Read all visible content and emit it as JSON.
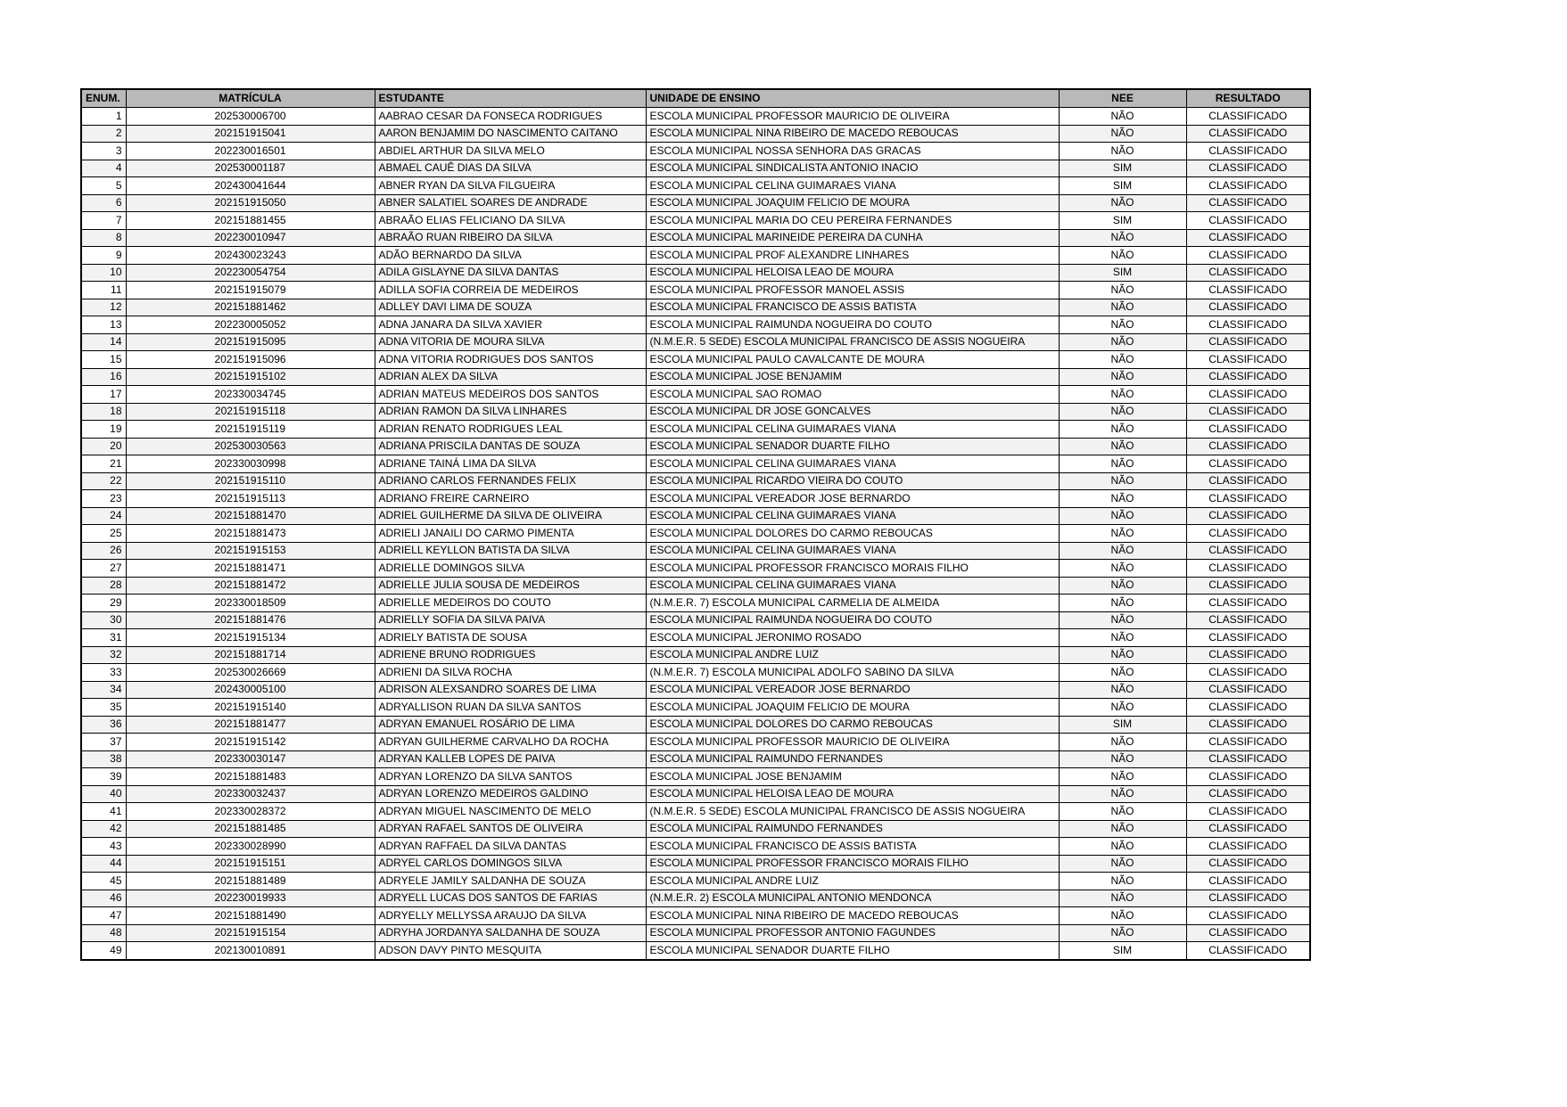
{
  "colors": {
    "header_bg": "#b9b9b9",
    "row_alt_bg": "#f2f2f2",
    "border": "#000000",
    "text": "#000000",
    "page_bg": "#ffffff"
  },
  "table": {
    "columns": [
      "ENUM.",
      "MATRÍCULA",
      "ESTUDANTE",
      "UNIDADE DE ENSINO",
      "NEE",
      "RESULTADO"
    ],
    "rows": [
      {
        "enum": "1",
        "matricula": "202530006700",
        "estudante": "AABRAO CESAR DA FONSECA RODRIGUES",
        "unidade": "ESCOLA MUNICIPAL PROFESSOR MAURICIO DE OLIVEIRA",
        "nee": "NÃO",
        "resultado": "CLASSIFICADO"
      },
      {
        "enum": "2",
        "matricula": "202151915041",
        "estudante": "AARON BENJAMIM DO NASCIMENTO CAITANO",
        "unidade": "ESCOLA MUNICIPAL NINA RIBEIRO DE MACEDO REBOUCAS",
        "nee": "NÃO",
        "resultado": "CLASSIFICADO"
      },
      {
        "enum": "3",
        "matricula": "202230016501",
        "estudante": "ABDIEL ARTHUR DA SILVA MELO",
        "unidade": "ESCOLA MUNICIPAL NOSSA SENHORA DAS GRACAS",
        "nee": "NÃO",
        "resultado": "CLASSIFICADO"
      },
      {
        "enum": "4",
        "matricula": "202530001187",
        "estudante": "ABMAEL CAUÊ DIAS DA SILVA",
        "unidade": "ESCOLA MUNICIPAL SINDICALISTA ANTONIO INACIO",
        "nee": "SIM",
        "resultado": "CLASSIFICADO"
      },
      {
        "enum": "5",
        "matricula": "202430041644",
        "estudante": "ABNER RYAN DA SILVA FILGUEIRA",
        "unidade": "ESCOLA MUNICIPAL CELINA GUIMARAES VIANA",
        "nee": "SIM",
        "resultado": "CLASSIFICADO"
      },
      {
        "enum": "6",
        "matricula": "202151915050",
        "estudante": "ABNER SALATIEL SOARES DE ANDRADE",
        "unidade": "ESCOLA MUNICIPAL JOAQUIM FELICIO DE MOURA",
        "nee": "NÃO",
        "resultado": "CLASSIFICADO"
      },
      {
        "enum": "7",
        "matricula": "202151881455",
        "estudante": "ABRAÃO ELIAS FELICIANO DA SILVA",
        "unidade": "ESCOLA MUNICIPAL MARIA DO CEU PEREIRA FERNANDES",
        "nee": "SIM",
        "resultado": "CLASSIFICADO"
      },
      {
        "enum": "8",
        "matricula": "202230010947",
        "estudante": "ABRAÃO RUAN RIBEIRO DA SILVA",
        "unidade": "ESCOLA MUNICIPAL MARINEIDE PEREIRA DA CUNHA",
        "nee": "NÃO",
        "resultado": "CLASSIFICADO"
      },
      {
        "enum": "9",
        "matricula": "202430023243",
        "estudante": "ADÃO BERNARDO DA SILVA",
        "unidade": "ESCOLA MUNICIPAL PROF ALEXANDRE LINHARES",
        "nee": "NÃO",
        "resultado": "CLASSIFICADO"
      },
      {
        "enum": "10",
        "matricula": "202230054754",
        "estudante": "ADILA GISLAYNE DA SILVA DANTAS",
        "unidade": "ESCOLA MUNICIPAL HELOISA LEAO DE MOURA",
        "nee": "SIM",
        "resultado": "CLASSIFICADO"
      },
      {
        "enum": "11",
        "matricula": "202151915079",
        "estudante": "ADILLA SOFIA CORREIA DE MEDEIROS",
        "unidade": "ESCOLA MUNICIPAL PROFESSOR MANOEL ASSIS",
        "nee": "NÃO",
        "resultado": "CLASSIFICADO"
      },
      {
        "enum": "12",
        "matricula": "202151881462",
        "estudante": "ADLLEY DAVI LIMA  DE SOUZA",
        "unidade": "ESCOLA MUNICIPAL FRANCISCO DE ASSIS BATISTA",
        "nee": "NÃO",
        "resultado": "CLASSIFICADO"
      },
      {
        "enum": "13",
        "matricula": "202230005052",
        "estudante": "ADNA JANARA DA SILVA XAVIER",
        "unidade": "ESCOLA MUNICIPAL RAIMUNDA NOGUEIRA DO COUTO",
        "nee": "NÃO",
        "resultado": "CLASSIFICADO"
      },
      {
        "enum": "14",
        "matricula": "202151915095",
        "estudante": "ADNA VITORIA DE MOURA SILVA",
        "unidade": "(N.M.E.R. 5 SEDE) ESCOLA MUNICIPAL FRANCISCO DE ASSIS NOGUEIRA",
        "nee": "NÃO",
        "resultado": "CLASSIFICADO"
      },
      {
        "enum": "15",
        "matricula": "202151915096",
        "estudante": "ADNA VITORIA RODRIGUES DOS SANTOS",
        "unidade": "ESCOLA MUNICIPAL PAULO CAVALCANTE DE MOURA",
        "nee": "NÃO",
        "resultado": "CLASSIFICADO"
      },
      {
        "enum": "16",
        "matricula": "202151915102",
        "estudante": "ADRIAN ALEX DA SILVA",
        "unidade": "ESCOLA MUNICIPAL JOSE BENJAMIM",
        "nee": "NÃO",
        "resultado": "CLASSIFICADO"
      },
      {
        "enum": "17",
        "matricula": "202330034745",
        "estudante": "ADRIAN MATEUS MEDEIROS DOS SANTOS",
        "unidade": "ESCOLA MUNICIPAL SAO ROMAO",
        "nee": "NÃO",
        "resultado": "CLASSIFICADO"
      },
      {
        "enum": "18",
        "matricula": "202151915118",
        "estudante": "ADRIAN RAMON DA SILVA LINHARES",
        "unidade": "ESCOLA MUNICIPAL DR JOSE GONCALVES",
        "nee": "NÃO",
        "resultado": "CLASSIFICADO"
      },
      {
        "enum": "19",
        "matricula": "202151915119",
        "estudante": "ADRIAN RENATO RODRIGUES LEAL",
        "unidade": "ESCOLA MUNICIPAL CELINA GUIMARAES VIANA",
        "nee": "NÃO",
        "resultado": "CLASSIFICADO"
      },
      {
        "enum": "20",
        "matricula": "202530030563",
        "estudante": "ADRIANA PRISCILA DANTAS DE SOUZA",
        "unidade": "ESCOLA MUNICIPAL SENADOR DUARTE FILHO",
        "nee": "NÃO",
        "resultado": "CLASSIFICADO"
      },
      {
        "enum": "21",
        "matricula": "202330030998",
        "estudante": "ADRIANE TAINÁ LIMA DA SILVA",
        "unidade": "ESCOLA MUNICIPAL CELINA GUIMARAES VIANA",
        "nee": "NÃO",
        "resultado": "CLASSIFICADO"
      },
      {
        "enum": "22",
        "matricula": "202151915110",
        "estudante": "ADRIANO CARLOS FERNANDES FELIX",
        "unidade": "ESCOLA MUNICIPAL RICARDO VIEIRA DO COUTO",
        "nee": "NÃO",
        "resultado": "CLASSIFICADO"
      },
      {
        "enum": "23",
        "matricula": "202151915113",
        "estudante": "ADRIANO FREIRE CARNEIRO",
        "unidade": "ESCOLA MUNICIPAL VEREADOR JOSE BERNARDO",
        "nee": "NÃO",
        "resultado": "CLASSIFICADO"
      },
      {
        "enum": "24",
        "matricula": "202151881470",
        "estudante": "ADRIEL GUILHERME DA SILVA DE OLIVEIRA",
        "unidade": "ESCOLA MUNICIPAL CELINA GUIMARAES VIANA",
        "nee": "NÃO",
        "resultado": "CLASSIFICADO"
      },
      {
        "enum": "25",
        "matricula": "202151881473",
        "estudante": "ADRIELI JANAILI DO CARMO PIMENTA",
        "unidade": "ESCOLA MUNICIPAL DOLORES DO CARMO REBOUCAS",
        "nee": "NÃO",
        "resultado": "CLASSIFICADO"
      },
      {
        "enum": "26",
        "matricula": "202151915153",
        "estudante": "ADRIELL KEYLLON BATISTA DA SILVA",
        "unidade": "ESCOLA MUNICIPAL CELINA GUIMARAES VIANA",
        "nee": "NÃO",
        "resultado": "CLASSIFICADO"
      },
      {
        "enum": "27",
        "matricula": "202151881471",
        "estudante": "ADRIELLE DOMINGOS SILVA",
        "unidade": "ESCOLA MUNICIPAL PROFESSOR FRANCISCO MORAIS FILHO",
        "nee": "NÃO",
        "resultado": "CLASSIFICADO"
      },
      {
        "enum": "28",
        "matricula": "202151881472",
        "estudante": "ADRIELLE JULIA SOUSA DE MEDEIROS",
        "unidade": "ESCOLA MUNICIPAL CELINA GUIMARAES VIANA",
        "nee": "NÃO",
        "resultado": "CLASSIFICADO"
      },
      {
        "enum": "29",
        "matricula": "202330018509",
        "estudante": "ADRIELLE MEDEIROS DO COUTO",
        "unidade": "(N.M.E.R. 7) ESCOLA MUNICIPAL CARMELIA DE ALMEIDA",
        "nee": "NÃO",
        "resultado": "CLASSIFICADO"
      },
      {
        "enum": "30",
        "matricula": "202151881476",
        "estudante": "ADRIELLY SOFIA DA SILVA PAIVA",
        "unidade": "ESCOLA MUNICIPAL RAIMUNDA NOGUEIRA DO COUTO",
        "nee": "NÃO",
        "resultado": "CLASSIFICADO"
      },
      {
        "enum": "31",
        "matricula": "202151915134",
        "estudante": "ADRIELY BATISTA DE SOUSA",
        "unidade": "ESCOLA MUNICIPAL JERONIMO ROSADO",
        "nee": "NÃO",
        "resultado": "CLASSIFICADO"
      },
      {
        "enum": "32",
        "matricula": "202151881714",
        "estudante": "ADRIENE BRUNO RODRIGUES",
        "unidade": "ESCOLA MUNICIPAL ANDRE LUIZ",
        "nee": "NÃO",
        "resultado": "CLASSIFICADO"
      },
      {
        "enum": "33",
        "matricula": "202530026669",
        "estudante": "ADRIENI DA SILVA ROCHA",
        "unidade": "(N.M.E.R. 7) ESCOLA MUNICIPAL ADOLFO SABINO DA SILVA",
        "nee": "NÃO",
        "resultado": "CLASSIFICADO"
      },
      {
        "enum": "34",
        "matricula": "202430005100",
        "estudante": "ADRISON ALEXSANDRO SOARES DE LIMA",
        "unidade": "ESCOLA MUNICIPAL VEREADOR JOSE BERNARDO",
        "nee": "NÃO",
        "resultado": "CLASSIFICADO"
      },
      {
        "enum": "35",
        "matricula": "202151915140",
        "estudante": "ADRYALLISON RUAN DA SILVA SANTOS",
        "unidade": "ESCOLA MUNICIPAL JOAQUIM FELICIO DE MOURA",
        "nee": "NÃO",
        "resultado": "CLASSIFICADO"
      },
      {
        "enum": "36",
        "matricula": "202151881477",
        "estudante": "ADRYAN EMANUEL ROSÁRIO DE LIMA",
        "unidade": "ESCOLA MUNICIPAL DOLORES DO CARMO REBOUCAS",
        "nee": "SIM",
        "resultado": "CLASSIFICADO"
      },
      {
        "enum": "37",
        "matricula": "202151915142",
        "estudante": "ADRYAN GUILHERME CARVALHO DA ROCHA",
        "unidade": "ESCOLA MUNICIPAL PROFESSOR MAURICIO DE OLIVEIRA",
        "nee": "NÃO",
        "resultado": "CLASSIFICADO"
      },
      {
        "enum": "38",
        "matricula": "202330030147",
        "estudante": "ADRYAN KALLEB LOPES DE PAIVA",
        "unidade": "ESCOLA MUNICIPAL RAIMUNDO FERNANDES",
        "nee": "NÃO",
        "resultado": "CLASSIFICADO"
      },
      {
        "enum": "39",
        "matricula": "202151881483",
        "estudante": "ADRYAN LORENZO DA SILVA SANTOS",
        "unidade": "ESCOLA MUNICIPAL JOSE BENJAMIM",
        "nee": "NÃO",
        "resultado": "CLASSIFICADO"
      },
      {
        "enum": "40",
        "matricula": "202330032437",
        "estudante": "ADRYAN LORENZO MEDEIROS GALDINO",
        "unidade": "ESCOLA MUNICIPAL HELOISA LEAO DE MOURA",
        "nee": "NÃO",
        "resultado": "CLASSIFICADO"
      },
      {
        "enum": "41",
        "matricula": "202330028372",
        "estudante": "ADRYAN MIGUEL NASCIMENTO DE MELO",
        "unidade": "(N.M.E.R. 5 SEDE) ESCOLA MUNICIPAL FRANCISCO DE ASSIS NOGUEIRA",
        "nee": "NÃO",
        "resultado": "CLASSIFICADO"
      },
      {
        "enum": "42",
        "matricula": "202151881485",
        "estudante": "ADRYAN RAFAEL SANTOS DE OLIVEIRA",
        "unidade": "ESCOLA MUNICIPAL RAIMUNDO FERNANDES",
        "nee": "NÃO",
        "resultado": "CLASSIFICADO"
      },
      {
        "enum": "43",
        "matricula": "202330028990",
        "estudante": "ADRYAN RAFFAEL DA SILVA DANTAS",
        "unidade": "ESCOLA MUNICIPAL FRANCISCO DE ASSIS BATISTA",
        "nee": "NÃO",
        "resultado": "CLASSIFICADO"
      },
      {
        "enum": "44",
        "matricula": "202151915151",
        "estudante": "ADRYEL CARLOS DOMINGOS SILVA",
        "unidade": "ESCOLA MUNICIPAL PROFESSOR FRANCISCO MORAIS FILHO",
        "nee": "NÃO",
        "resultado": "CLASSIFICADO"
      },
      {
        "enum": "45",
        "matricula": "202151881489",
        "estudante": "ADRYELE JAMILY SALDANHA DE SOUZA",
        "unidade": "ESCOLA MUNICIPAL ANDRE LUIZ",
        "nee": "NÃO",
        "resultado": "CLASSIFICADO"
      },
      {
        "enum": "46",
        "matricula": "202230019933",
        "estudante": "ADRYELL LUCAS DOS SANTOS DE FARIAS",
        "unidade": "(N.M.E.R. 2) ESCOLA MUNICIPAL ANTONIO MENDONCA",
        "nee": "NÃO",
        "resultado": "CLASSIFICADO"
      },
      {
        "enum": "47",
        "matricula": "202151881490",
        "estudante": "ADRYELLY MELLYSSA ARAUJO DA SILVA",
        "unidade": "ESCOLA MUNICIPAL NINA RIBEIRO DE MACEDO REBOUCAS",
        "nee": "NÃO",
        "resultado": "CLASSIFICADO"
      },
      {
        "enum": "48",
        "matricula": "202151915154",
        "estudante": "ADRYHA JORDANYA SALDANHA DE SOUZA",
        "unidade": "ESCOLA MUNICIPAL PROFESSOR ANTONIO FAGUNDES",
        "nee": "NÃO",
        "resultado": "CLASSIFICADO"
      },
      {
        "enum": "49",
        "matricula": "202130010891",
        "estudante": "ADSON DAVY PINTO MESQUITA",
        "unidade": "ESCOLA MUNICIPAL SENADOR DUARTE FILHO",
        "nee": "SIM",
        "resultado": "CLASSIFICADO"
      }
    ]
  }
}
